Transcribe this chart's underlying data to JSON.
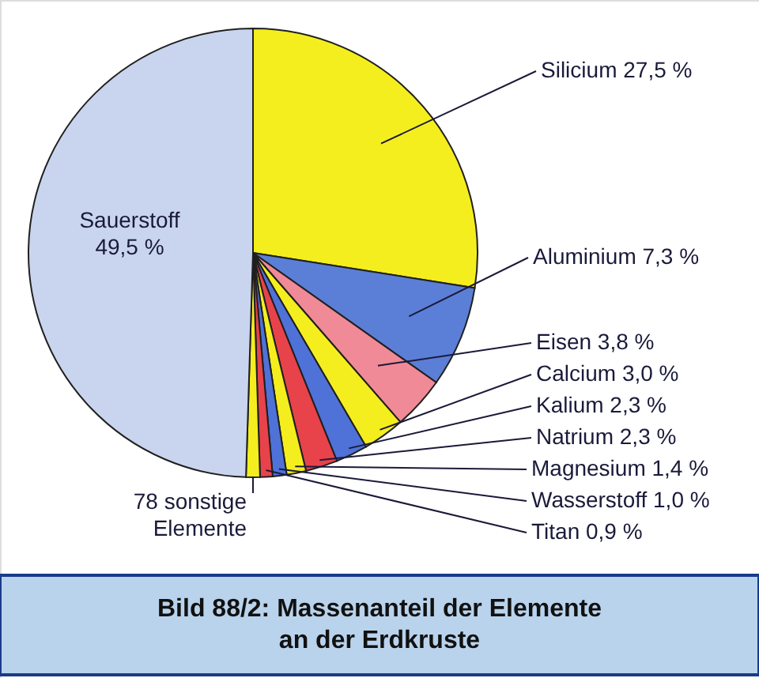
{
  "chart_data": {
    "type": "pie",
    "title": "Bild 88/2: Massenanteil der Elemente\nan der Erdkruste",
    "categories": [
      "Silicium",
      "Aluminium",
      "Eisen",
      "Calcium",
      "Kalium",
      "Natrium",
      "Magnesium",
      "Wasserstoff",
      "Titan",
      "78 sonstige\nElemente",
      "Sauerstoff"
    ],
    "values": [
      27.5,
      7.3,
      3.8,
      3.0,
      2.3,
      2.3,
      1.4,
      1.0,
      0.9,
      1.0,
      49.5
    ],
    "value_labels": [
      "27,5 %",
      "7,3 %",
      "3,8 %",
      "3,0 %",
      "2,3 %",
      "2,3 %",
      "1,4 %",
      "1,0 %",
      "0,9 %",
      null,
      "49,5 %"
    ],
    "colors": [
      "#f5ee1e",
      "#5b7fd6",
      "#f08a96",
      "#f5ee1e",
      "#4f72d8",
      "#e8434a",
      "#f5ee1e",
      "#4f72d8",
      "#e8434a",
      "#f5ee1e",
      "#c9d5ee"
    ]
  }
}
